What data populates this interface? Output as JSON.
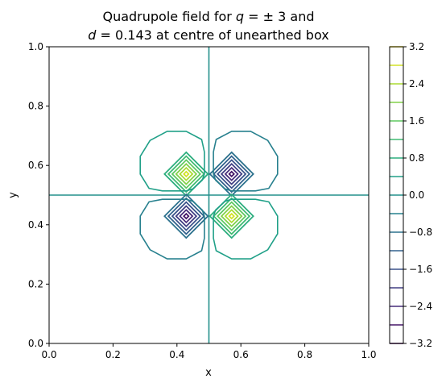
{
  "chart_data": {
    "type": "contour",
    "title_line1_pre": "Quadrupole field for ",
    "title_line1_math": "q",
    "title_line1_mid": " = ",
    "title_line1_pm": "± 3 and",
    "title_line2_math": "d",
    "title_line2_rest": " = 0.143 at centre of unearthed box",
    "xlabel": "x",
    "ylabel": "y",
    "xlim": [
      0.0,
      1.0
    ],
    "ylim": [
      0.0,
      1.0
    ],
    "xticks": [
      "0.0",
      "0.2",
      "0.4",
      "0.6",
      "0.8",
      "1.0"
    ],
    "yticks": [
      "0.0",
      "0.2",
      "0.4",
      "0.6",
      "0.8",
      "1.0"
    ],
    "colormap": "viridis",
    "color_range": [
      -3.2,
      3.2
    ],
    "levels": [
      -3.2,
      -2.8,
      -2.4,
      -2.0,
      -1.6,
      -1.2,
      -0.8,
      -0.4,
      0.0,
      0.4,
      0.8,
      1.2,
      1.6,
      2.0,
      2.4,
      2.8,
      3.2
    ],
    "colorbar_ticks": [
      "3.2",
      "2.4",
      "1.6",
      "0.8",
      "0.0",
      "−0.8",
      "−1.6",
      "−2.4",
      "−3.2"
    ],
    "charges": [
      {
        "x": 0.429,
        "y": 0.571,
        "q": 3
      },
      {
        "x": 0.571,
        "y": 0.571,
        "q": -3
      },
      {
        "x": 0.429,
        "y": 0.429,
        "q": -3
      },
      {
        "x": 0.571,
        "y": 0.429,
        "q": 3
      }
    ],
    "zero_lines": [
      {
        "orientation": "vertical",
        "value": 0.5
      },
      {
        "orientation": "horizontal",
        "value": 0.5
      }
    ],
    "outer_contour_level": 0.4
  }
}
